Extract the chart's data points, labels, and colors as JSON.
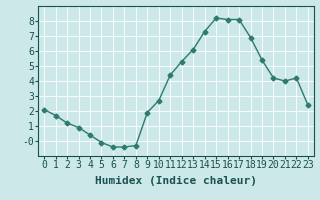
{
  "x": [
    0,
    1,
    2,
    3,
    4,
    5,
    6,
    7,
    8,
    9,
    10,
    11,
    12,
    13,
    14,
    15,
    16,
    17,
    18,
    19,
    20,
    21,
    22,
    23
  ],
  "y": [
    2.1,
    1.7,
    1.2,
    0.9,
    0.4,
    -0.1,
    -0.4,
    -0.4,
    -0.3,
    1.9,
    2.7,
    4.4,
    5.3,
    6.1,
    7.3,
    8.2,
    8.1,
    8.1,
    6.9,
    5.4,
    4.2,
    4.0,
    4.2,
    2.4
  ],
  "line_color": "#2d7a6e",
  "marker": "D",
  "marker_size": 2.5,
  "background_color": "#cce8e8",
  "grid_color": "#ffffff",
  "xlabel": "Humidex (Indice chaleur)",
  "ylim": [
    -1.0,
    9.0
  ],
  "xlim": [
    -0.5,
    23.5
  ],
  "yticks": [
    0,
    1,
    2,
    3,
    4,
    5,
    6,
    7,
    8
  ],
  "ytick_labels": [
    "-0",
    "1",
    "2",
    "3",
    "4",
    "5",
    "6",
    "7",
    "8"
  ],
  "xtick_labels": [
    "0",
    "1",
    "2",
    "3",
    "4",
    "5",
    "6",
    "7",
    "8",
    "9",
    "10",
    "11",
    "12",
    "13",
    "14",
    "15",
    "16",
    "17",
    "18",
    "19",
    "20",
    "21",
    "22",
    "23"
  ],
  "xlabel_fontsize": 8,
  "tick_fontsize": 7,
  "line_width": 1.0
}
